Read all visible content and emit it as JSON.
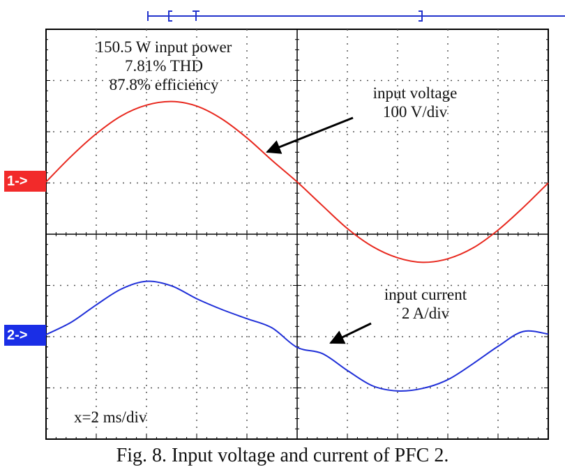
{
  "annotations": {
    "power_line1": "150.5 W input power",
    "power_line2": "7.81% THD",
    "power_line3": "87.8% efficiency",
    "voltage_line1": "input voltage",
    "voltage_line2": "100 V/div",
    "current_line1": "input current",
    "current_line2": "2 A/div",
    "xdiv": "x=2 ms/div"
  },
  "markers": {
    "ch1": "1->",
    "ch2": "2->"
  },
  "caption": "Fig. 8. Input voltage and current of PFC 2.",
  "chart_data": {
    "type": "line",
    "title": "",
    "xlabel": "",
    "ylabel": "",
    "x_unit": "div",
    "xlim": [
      0,
      10
    ],
    "grid": true,
    "colors": {
      "voltage": "#e8281e",
      "current": "#1f2fd8",
      "ch1_marker": "#f22a2a",
      "ch2_marker": "#1a2ee6"
    },
    "series": [
      {
        "name": "input voltage",
        "unit": "div",
        "x": [
          0,
          0.5,
          1,
          1.5,
          2,
          2.5,
          3,
          3.5,
          4,
          4.5,
          5,
          5.5,
          6,
          6.5,
          7,
          7.5,
          8,
          8.5,
          9,
          9.5,
          10
        ],
        "y": [
          0,
          0.5,
          0.94,
          1.29,
          1.5,
          1.57,
          1.48,
          1.23,
          0.86,
          0.42,
          0.0,
          -0.46,
          -0.91,
          -1.26,
          -1.48,
          -1.57,
          -1.5,
          -1.29,
          -0.94,
          -0.5,
          -0.02
        ]
      },
      {
        "name": "input current",
        "unit": "div",
        "x": [
          0,
          0.5,
          1,
          1.5,
          2,
          2.5,
          3,
          3.5,
          4,
          4.5,
          5,
          5.5,
          6,
          6.5,
          7,
          7.5,
          8,
          8.5,
          9,
          9.5,
          10
        ],
        "y": [
          0,
          0.24,
          0.58,
          0.89,
          1.04,
          0.95,
          0.7,
          0.49,
          0.31,
          0.13,
          -0.25,
          -0.37,
          -0.7,
          -1.0,
          -1.1,
          -1.05,
          -0.88,
          -0.57,
          -0.23,
          0.06,
          0.01
        ]
      }
    ]
  }
}
